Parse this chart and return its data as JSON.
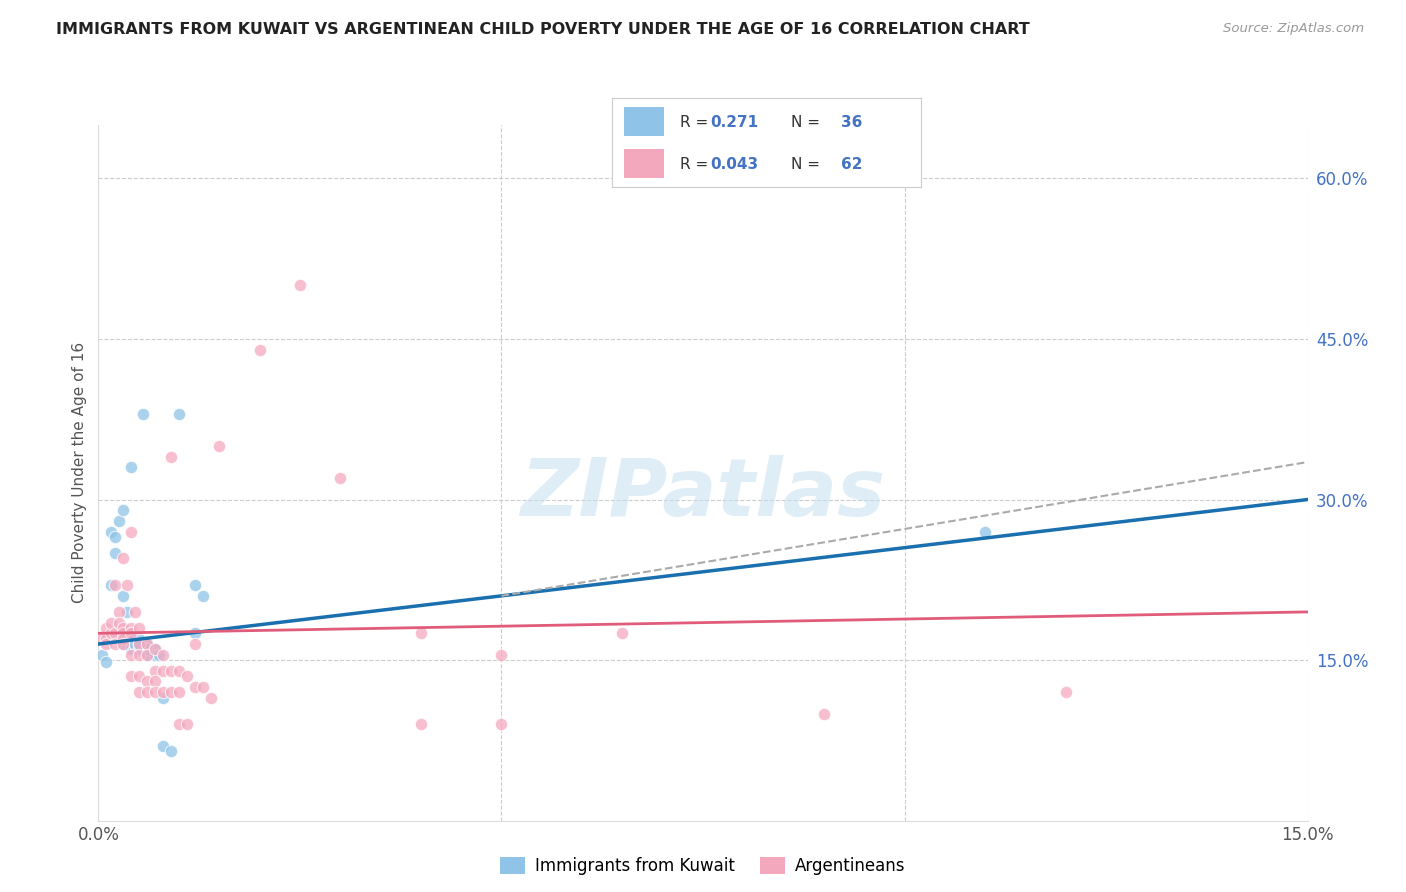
{
  "title": "IMMIGRANTS FROM KUWAIT VS ARGENTINEAN CHILD POVERTY UNDER THE AGE OF 16 CORRELATION CHART",
  "source": "Source: ZipAtlas.com",
  "ylabel": "Child Poverty Under the Age of 16",
  "yaxis_labels": [
    "15.0%",
    "30.0%",
    "45.0%",
    "60.0%"
  ],
  "yaxis_values": [
    15.0,
    30.0,
    45.0,
    60.0
  ],
  "xmin": 0.0,
  "xmax": 15.0,
  "ymin": 0.0,
  "ymax": 65.0,
  "watermark_text": "ZIPatlas",
  "color_blue": "#8fc4e8",
  "color_blue_line": "#1a6faf",
  "color_pink": "#f4a8be",
  "color_pink_line": "#e05c7a",
  "color_dashed": "#aaaaaa",
  "trendline_blue": [
    [
      0.0,
      16.5
    ],
    [
      15.0,
      30.0
    ]
  ],
  "trendline_pink": [
    [
      0.0,
      17.5
    ],
    [
      15.0,
      19.5
    ]
  ],
  "trendline_dashed": [
    [
      5.0,
      21.0
    ],
    [
      15.0,
      33.5
    ]
  ],
  "blue_points": [
    [
      0.05,
      15.5
    ],
    [
      0.1,
      14.8
    ],
    [
      0.15,
      22.0
    ],
    [
      0.15,
      27.0
    ],
    [
      0.2,
      25.0
    ],
    [
      0.2,
      26.5
    ],
    [
      0.25,
      28.0
    ],
    [
      0.3,
      29.0
    ],
    [
      0.3,
      17.5
    ],
    [
      0.3,
      16.5
    ],
    [
      0.3,
      21.0
    ],
    [
      0.35,
      19.5
    ],
    [
      0.4,
      33.0
    ],
    [
      0.4,
      17.5
    ],
    [
      0.4,
      16.8
    ],
    [
      0.4,
      16.0
    ],
    [
      0.45,
      16.5
    ],
    [
      0.5,
      16.5
    ],
    [
      0.5,
      16.0
    ],
    [
      0.5,
      17.0
    ],
    [
      0.55,
      38.0
    ],
    [
      0.6,
      16.5
    ],
    [
      0.6,
      16.0
    ],
    [
      0.6,
      15.5
    ],
    [
      0.7,
      16.0
    ],
    [
      0.7,
      15.5
    ],
    [
      0.75,
      15.5
    ],
    [
      0.8,
      11.5
    ],
    [
      0.8,
      7.0
    ],
    [
      0.9,
      6.5
    ],
    [
      1.0,
      38.0
    ],
    [
      1.2,
      22.0
    ],
    [
      1.2,
      17.5
    ],
    [
      1.3,
      21.0
    ],
    [
      11.0,
      27.0
    ],
    [
      0.5,
      16.5
    ]
  ],
  "pink_points": [
    [
      0.05,
      17.0
    ],
    [
      0.1,
      18.0
    ],
    [
      0.1,
      17.0
    ],
    [
      0.1,
      16.5
    ],
    [
      0.15,
      17.5
    ],
    [
      0.15,
      18.5
    ],
    [
      0.2,
      22.0
    ],
    [
      0.2,
      17.5
    ],
    [
      0.2,
      16.5
    ],
    [
      0.25,
      19.5
    ],
    [
      0.25,
      18.5
    ],
    [
      0.3,
      18.0
    ],
    [
      0.3,
      17.5
    ],
    [
      0.3,
      17.0
    ],
    [
      0.3,
      16.5
    ],
    [
      0.3,
      24.5
    ],
    [
      0.35,
      22.0
    ],
    [
      0.4,
      27.0
    ],
    [
      0.4,
      18.0
    ],
    [
      0.4,
      17.5
    ],
    [
      0.4,
      15.5
    ],
    [
      0.4,
      13.5
    ],
    [
      0.45,
      19.5
    ],
    [
      0.5,
      18.0
    ],
    [
      0.5,
      16.5
    ],
    [
      0.5,
      15.5
    ],
    [
      0.5,
      13.5
    ],
    [
      0.5,
      12.0
    ],
    [
      0.6,
      16.5
    ],
    [
      0.6,
      15.5
    ],
    [
      0.6,
      13.0
    ],
    [
      0.6,
      12.0
    ],
    [
      0.7,
      16.0
    ],
    [
      0.7,
      14.0
    ],
    [
      0.7,
      13.0
    ],
    [
      0.7,
      12.0
    ],
    [
      0.8,
      15.5
    ],
    [
      0.8,
      14.0
    ],
    [
      0.8,
      12.0
    ],
    [
      0.9,
      34.0
    ],
    [
      0.9,
      14.0
    ],
    [
      0.9,
      12.0
    ],
    [
      1.0,
      14.0
    ],
    [
      1.0,
      12.0
    ],
    [
      1.0,
      9.0
    ],
    [
      1.1,
      13.5
    ],
    [
      1.1,
      9.0
    ],
    [
      1.2,
      16.5
    ],
    [
      1.2,
      12.5
    ],
    [
      1.3,
      12.5
    ],
    [
      1.4,
      11.5
    ],
    [
      1.5,
      35.0
    ],
    [
      2.0,
      44.0
    ],
    [
      2.5,
      50.0
    ],
    [
      3.0,
      32.0
    ],
    [
      4.0,
      17.5
    ],
    [
      4.0,
      9.0
    ],
    [
      5.0,
      15.5
    ],
    [
      5.0,
      9.0
    ],
    [
      6.5,
      17.5
    ],
    [
      9.0,
      10.0
    ],
    [
      12.0,
      12.0
    ]
  ],
  "legend_r1_label": "R = ",
  "legend_r1_val": "0.271",
  "legend_n1_label": "N = ",
  "legend_n1_val": "36",
  "legend_r2_label": "R = ",
  "legend_r2_val": "0.043",
  "legend_n2_label": "N = ",
  "legend_n2_val": "62",
  "legend_items": [
    {
      "label": "Immigrants from Kuwait",
      "color": "#8fc4e8"
    },
    {
      "label": "Argentineans",
      "color": "#f4a8be"
    }
  ],
  "xtick_labels": [
    "0.0%",
    "",
    "",
    "15.0%"
  ],
  "xtick_positions": [
    0.0,
    5.0,
    10.0,
    15.0
  ]
}
